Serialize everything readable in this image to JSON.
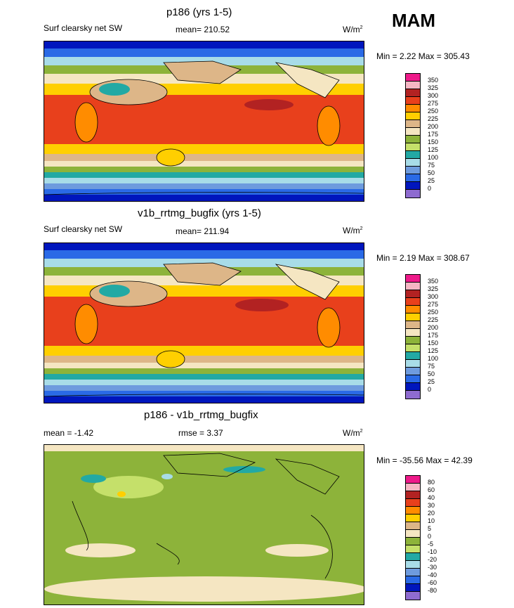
{
  "season": "MAM",
  "panels": [
    {
      "title": "p186 (yrs 1-5)",
      "left_label": "Surf clearsky net SW",
      "mean_label": "mean= 210.52",
      "units": "W/m",
      "units_sup": "2",
      "minmax": "Min =   2.22 Max = 305.43",
      "levels": [
        "350",
        "325",
        "300",
        "275",
        "250",
        "225",
        "200",
        "175",
        "150",
        "125",
        "100",
        "75",
        "50",
        "25",
        "0"
      ],
      "colors": [
        "#ee1a8a",
        "#f6b6c4",
        "#b22222",
        "#e8401c",
        "#ff8c00",
        "#ffcf00",
        "#ddb688",
        "#f5e6c2",
        "#8db33a",
        "#c5e06a",
        "#22a9a4",
        "#a8dce8",
        "#6e9bde",
        "#2a6ae6",
        "#0016bd",
        "#8e6bd0"
      ]
    },
    {
      "title": "v1b_rrtmg_bugfix (yrs 1-5)",
      "left_label": "Surf clearsky net SW",
      "mean_label": "mean= 211.94",
      "units": "W/m",
      "units_sup": "2",
      "minmax": "Min =   2.19 Max = 308.67",
      "levels": [
        "350",
        "325",
        "300",
        "275",
        "250",
        "225",
        "200",
        "175",
        "150",
        "125",
        "100",
        "75",
        "50",
        "25",
        "0"
      ],
      "colors": [
        "#ee1a8a",
        "#f6b6c4",
        "#b22222",
        "#e8401c",
        "#ff8c00",
        "#ffcf00",
        "#ddb688",
        "#f5e6c2",
        "#8db33a",
        "#c5e06a",
        "#22a9a4",
        "#a8dce8",
        "#6e9bde",
        "#2a6ae6",
        "#0016bd",
        "#8e6bd0"
      ]
    },
    {
      "title": "p186 - v1b_rrtmg_bugfix",
      "left_label": "mean =  -1.42",
      "mean_label": "rmse =    3.37",
      "units": "W/m",
      "units_sup": "2",
      "minmax": "Min = -35.56 Max =  42.39",
      "levels": [
        "80",
        "60",
        "40",
        "30",
        "20",
        "10",
        "5",
        "0",
        "-5",
        "-10",
        "-20",
        "-30",
        "-40",
        "-60",
        "-80"
      ],
      "colors": [
        "#ee1a8a",
        "#f6b6c4",
        "#b22222",
        "#e8401c",
        "#ff8c00",
        "#ffcf00",
        "#ddb688",
        "#f5e6c2",
        "#8db33a",
        "#c5e06a",
        "#22a9a4",
        "#a8dce8",
        "#6e9bde",
        "#2a6ae6",
        "#0016bd",
        "#8e6bd0"
      ]
    }
  ]
}
